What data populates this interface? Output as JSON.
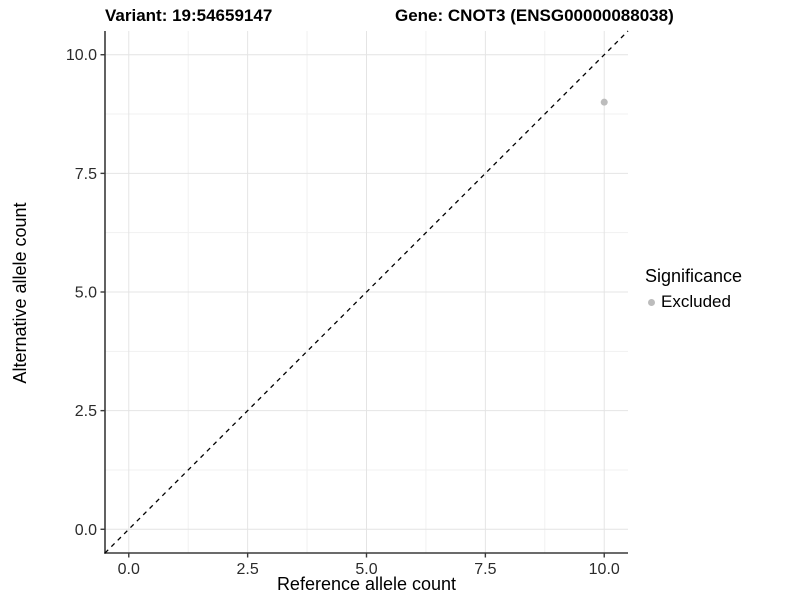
{
  "header": {
    "variant_title": "Variant: 19:54659147",
    "gene_title": "Gene: CNOT3 (ENSG00000088038)"
  },
  "legend": {
    "title": "Significance",
    "position": "right",
    "items": [
      {
        "label": "Excluded",
        "color": "#bcbcbc"
      }
    ]
  },
  "chart_data": {
    "type": "scatter",
    "title": "Variant: 19:54659147",
    "title_right": "Gene: CNOT3 (ENSG00000088038)",
    "xlabel": "Reference allele count",
    "ylabel": "Alternative allele count",
    "xlim": [
      -0.5,
      10.5
    ],
    "ylim": [
      -0.5,
      10.5
    ],
    "x_ticks": [
      0,
      2.5,
      5,
      7.5,
      10
    ],
    "x_tick_labels": [
      "0.0",
      "2.5",
      "5.0",
      "7.5",
      "10.0"
    ],
    "y_ticks": [
      0,
      2.5,
      5,
      7.5,
      10
    ],
    "y_tick_labels": [
      "0.0",
      "2.5",
      "5.0",
      "7.5",
      "10.0"
    ],
    "x_minor_ticks": [
      1.25,
      3.75,
      6.25,
      8.75
    ],
    "y_minor_ticks": [
      1.25,
      3.75,
      6.25,
      8.75
    ],
    "grid": true,
    "legend_position": "right",
    "series": [
      {
        "name": "Excluded",
        "color": "#bcbcbc",
        "point_radius": 3.5,
        "points": [
          {
            "x": 10,
            "y": 9
          }
        ]
      }
    ],
    "reference_line": {
      "style": "dashed",
      "color": "#000000",
      "slope": 1,
      "intercept": 0,
      "x1": -0.5,
      "y1": -0.5,
      "x2": 10.5,
      "y2": 10.5
    },
    "colors": {
      "grid_major": "#e4e4e4",
      "grid_minor": "#f1f1f1",
      "axis_line": "#3a3a3a",
      "tick_mark": "#3a3a3a",
      "tick_label": "#2b2b2b"
    }
  }
}
